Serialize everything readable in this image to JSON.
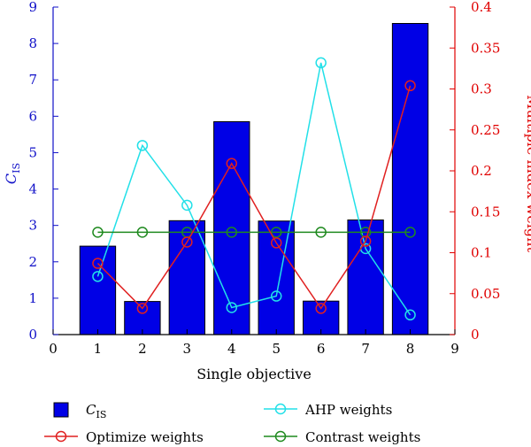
{
  "chart_data": {
    "type": "bar+line",
    "x_ticks": [
      "0",
      "1",
      "2",
      "3",
      "4",
      "5",
      "6",
      "7",
      "8",
      "9"
    ],
    "xlim": [
      0,
      9
    ],
    "xlabel": "Single objective",
    "ylabel_left": {
      "main": "C",
      "sub": "IS"
    },
    "ylim_left": [
      0,
      9
    ],
    "yticks_left": [
      "0",
      "1",
      "2",
      "3",
      "4",
      "5",
      "6",
      "7",
      "8",
      "9"
    ],
    "ylabel_right": "Multiple index weight",
    "ylim_right": [
      0,
      0.4
    ],
    "yticks_right": [
      "0",
      "0.05",
      "0.1",
      "0.15",
      "0.2",
      "0.25",
      "0.3",
      "0.35",
      "0.4"
    ],
    "x": [
      1,
      2,
      3,
      4,
      5,
      6,
      7,
      8
    ],
    "bars": {
      "name": {
        "main": "C",
        "sub": "IS"
      },
      "color": "#0000e6",
      "values": [
        2.43,
        0.91,
        3.13,
        5.85,
        3.12,
        0.92,
        3.15,
        8.55
      ]
    },
    "series": [
      {
        "name": "AHP weights",
        "color": "#22e0e8",
        "values": [
          0.071,
          0.231,
          0.158,
          0.033,
          0.047,
          0.332,
          0.105,
          0.024
        ]
      },
      {
        "name": "Optimize weights",
        "color": "#e02020",
        "values": [
          0.087,
          0.032,
          0.113,
          0.209,
          0.112,
          0.032,
          0.114,
          0.304
        ]
      },
      {
        "name": "Contrast weights",
        "color": "#1f8a1f",
        "values": [
          0.125,
          0.125,
          0.125,
          0.125,
          0.125,
          0.125,
          0.125,
          0.125
        ]
      }
    ],
    "left_axis_color": "#1010c8",
    "right_axis_color": "#e00000",
    "grid": false,
    "legend_position": "bottom"
  }
}
